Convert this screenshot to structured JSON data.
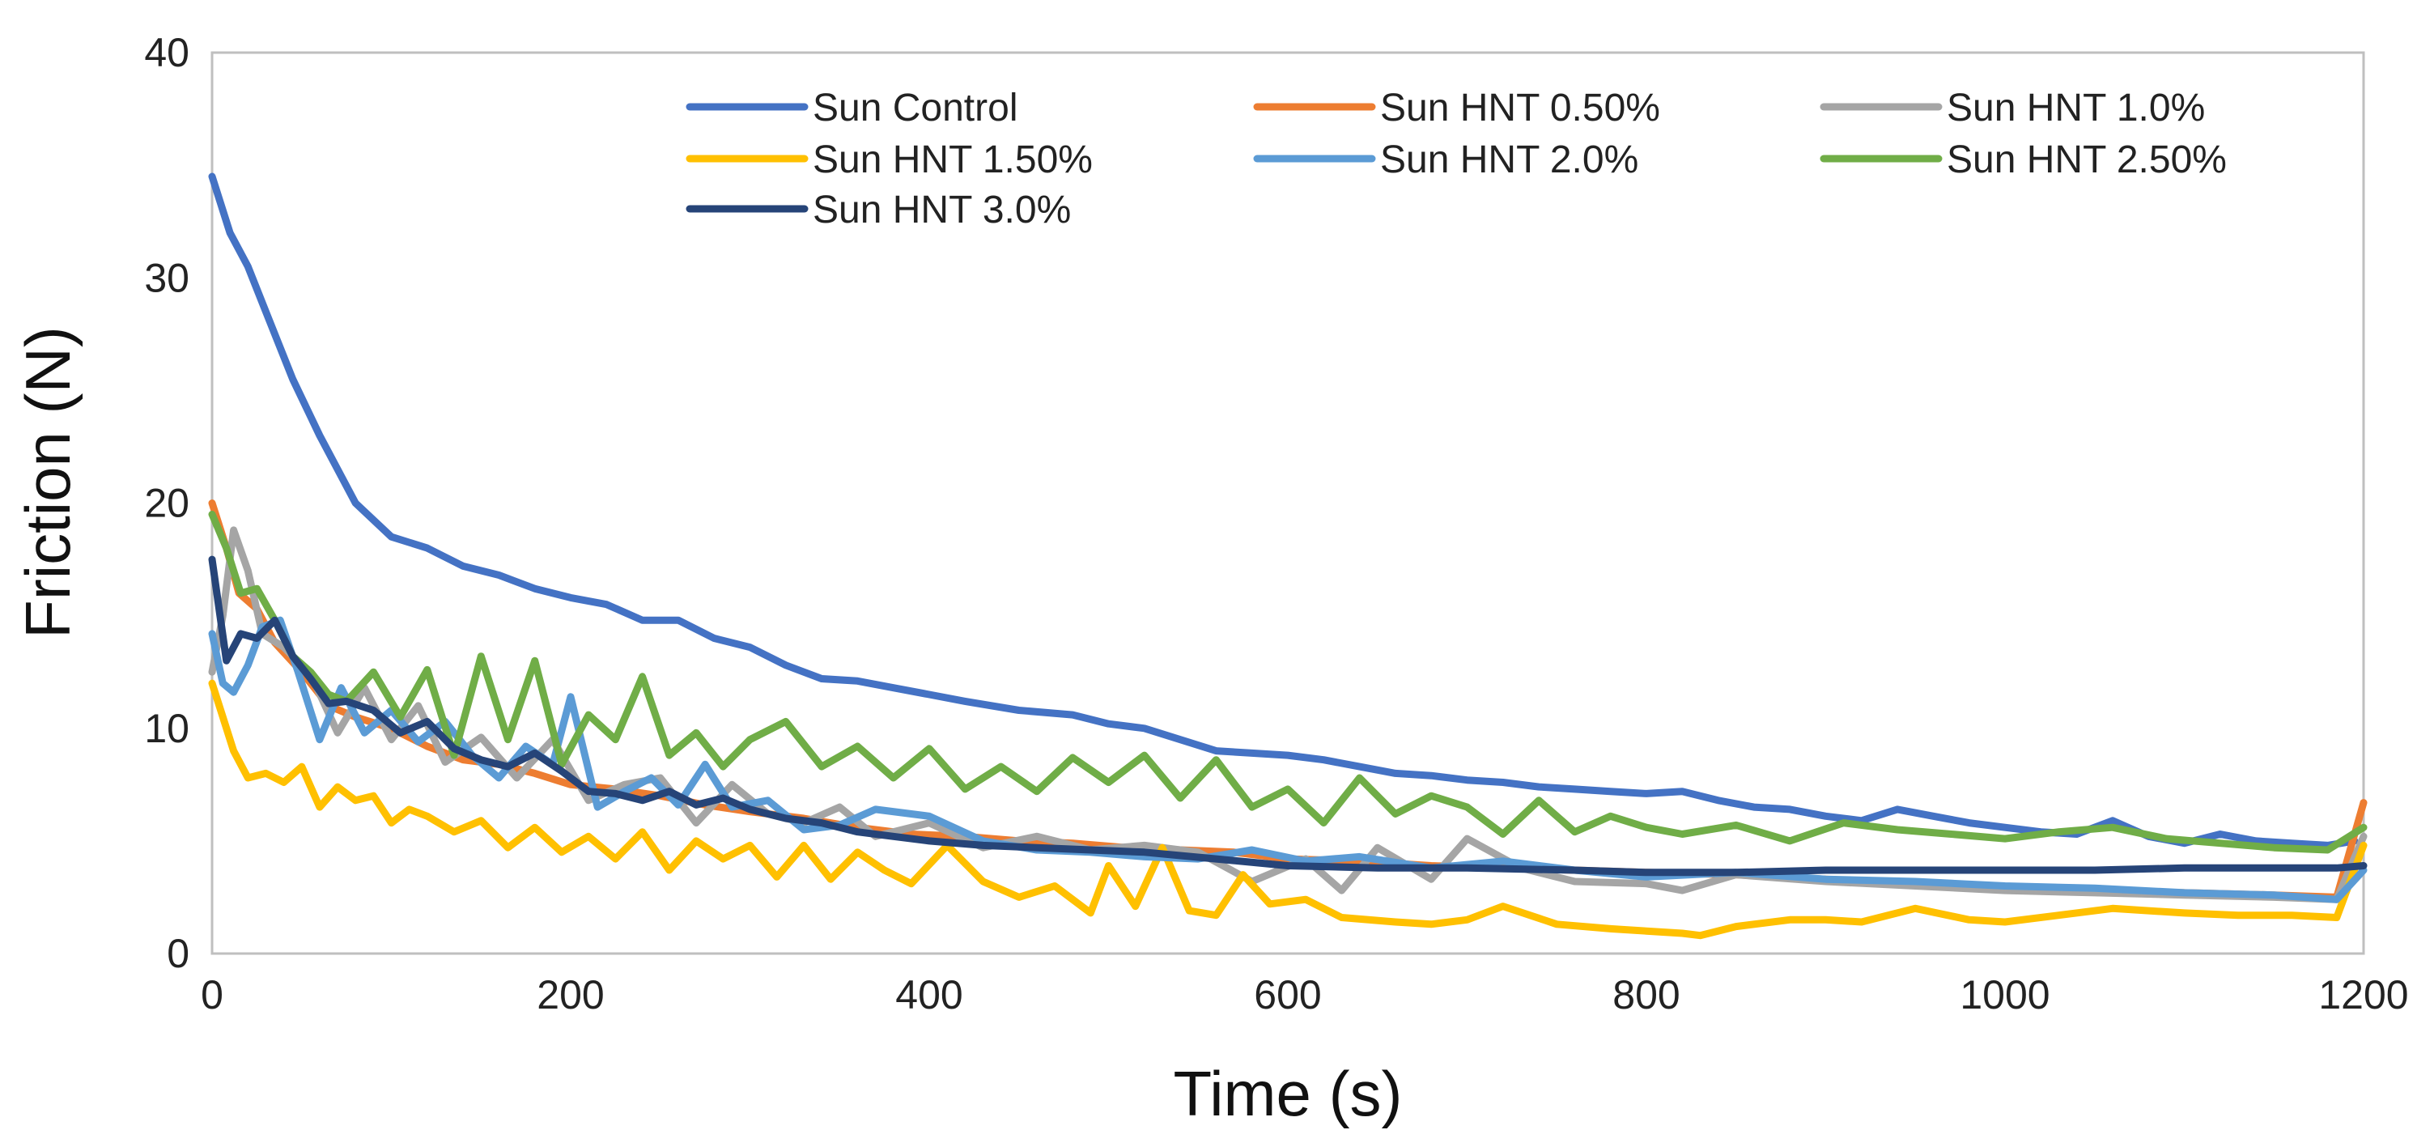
{
  "chart_data": {
    "type": "line",
    "xlabel": "Time (s)",
    "ylabel": "Friction (N)",
    "xlim": [
      0,
      1200
    ],
    "ylim": [
      0,
      40
    ],
    "xticks": [
      0,
      200,
      400,
      600,
      800,
      1000,
      1200
    ],
    "yticks": [
      0,
      10,
      20,
      30,
      40
    ],
    "grid": false,
    "legend_position": "top-right",
    "series": [
      {
        "name": "Sun Control",
        "color": "#4472c4",
        "x": [
          0,
          10,
          20,
          30,
          45,
          60,
          80,
          100,
          120,
          140,
          160,
          180,
          200,
          220,
          240,
          260,
          280,
          300,
          320,
          340,
          360,
          380,
          400,
          420,
          450,
          480,
          500,
          520,
          540,
          560,
          580,
          600,
          620,
          640,
          660,
          680,
          700,
          720,
          740,
          760,
          780,
          800,
          820,
          840,
          860,
          880,
          900,
          920,
          940,
          960,
          980,
          1000,
          1020,
          1040,
          1060,
          1080,
          1100,
          1120,
          1140,
          1160,
          1180,
          1195
        ],
        "y": [
          34.5,
          32,
          30.5,
          28.5,
          25.5,
          23,
          20,
          18.5,
          18,
          17.2,
          16.8,
          16.2,
          15.8,
          15.5,
          14.8,
          14.8,
          14,
          13.6,
          12.8,
          12.2,
          12.1,
          11.8,
          11.5,
          11.2,
          10.8,
          10.6,
          10.2,
          10,
          9.5,
          9,
          8.9,
          8.8,
          8.6,
          8.3,
          8,
          7.9,
          7.7,
          7.6,
          7.4,
          7.3,
          7.2,
          7.1,
          7.2,
          6.8,
          6.5,
          6.4,
          6.1,
          5.9,
          6.4,
          6.1,
          5.8,
          5.6,
          5.4,
          5.3,
          5.9,
          5.2,
          4.9,
          5.3,
          5,
          4.9,
          4.8,
          5
        ]
      },
      {
        "name": "Sun HNT 0.50%",
        "color": "#ed7d31",
        "x": [
          0,
          8,
          15,
          25,
          35,
          50,
          65,
          80,
          100,
          120,
          140,
          160,
          180,
          200,
          225,
          250,
          275,
          300,
          330,
          360,
          390,
          420,
          450,
          480,
          510,
          540,
          570,
          600,
          640,
          680,
          720,
          760,
          800,
          850,
          900,
          950,
          1000,
          1050,
          1100,
          1150,
          1185,
          1200
        ],
        "y": [
          20,
          18,
          16,
          15.3,
          13.8,
          12.5,
          11,
          10.5,
          10,
          9.2,
          8.6,
          8.4,
          8,
          7.5,
          7.3,
          7,
          6.6,
          6.3,
          6,
          5.6,
          5.3,
          5.2,
          5,
          4.9,
          4.7,
          4.6,
          4.5,
          4.2,
          4.1,
          3.9,
          3.8,
          3.7,
          3.6,
          3.5,
          3.3,
          3.1,
          2.9,
          2.8,
          2.7,
          2.6,
          2.5,
          6.7
        ]
      },
      {
        "name": "Sun HNT 1.0%",
        "color": "#a5a5a5",
        "x": [
          0,
          6,
          12,
          20,
          28,
          40,
          55,
          70,
          85,
          100,
          115,
          130,
          150,
          170,
          190,
          210,
          230,
          250,
          270,
          290,
          310,
          330,
          350,
          370,
          400,
          430,
          460,
          490,
          520,
          550,
          580,
          610,
          630,
          650,
          680,
          700,
          730,
          760,
          800,
          820,
          850,
          900,
          950,
          1000,
          1050,
          1100,
          1150,
          1185,
          1200
        ],
        "y": [
          12.5,
          15,
          18.8,
          17,
          14.2,
          13.6,
          12.4,
          9.8,
          11.8,
          9.5,
          11,
          8.5,
          9.6,
          7.8,
          9.5,
          6.8,
          7.5,
          7.8,
          5.8,
          7.5,
          6.2,
          5.8,
          6.5,
          5.2,
          5.8,
          4.7,
          5.2,
          4.6,
          4.8,
          4.5,
          3.2,
          4.2,
          2.8,
          4.7,
          3.3,
          5.1,
          3.8,
          3.2,
          3.1,
          2.8,
          3.5,
          3.2,
          3,
          2.8,
          2.7,
          2.6,
          2.5,
          2.4,
          5.2
        ]
      },
      {
        "name": "Sun HNT 1.50%",
        "color": "#ffc000",
        "x": [
          0,
          6,
          12,
          20,
          30,
          40,
          50,
          60,
          70,
          80,
          90,
          100,
          110,
          120,
          135,
          150,
          165,
          180,
          195,
          210,
          225,
          240,
          255,
          270,
          285,
          300,
          315,
          330,
          345,
          360,
          375,
          390,
          410,
          430,
          450,
          470,
          490,
          500,
          515,
          530,
          545,
          560,
          575,
          590,
          610,
          630,
          660,
          680,
          700,
          720,
          750,
          780,
          800,
          820,
          830,
          850,
          880,
          900,
          920,
          950,
          980,
          1000,
          1030,
          1060,
          1100,
          1130,
          1160,
          1185,
          1200
        ],
        "y": [
          12,
          10.5,
          9,
          7.8,
          8,
          7.6,
          8.3,
          6.5,
          7.4,
          6.8,
          7,
          5.8,
          6.4,
          6.1,
          5.4,
          5.9,
          4.7,
          5.6,
          4.5,
          5.2,
          4.2,
          5.4,
          3.7,
          5,
          4.2,
          4.8,
          3.4,
          4.8,
          3.3,
          4.5,
          3.7,
          3.1,
          4.8,
          3.2,
          2.5,
          3,
          1.8,
          3.9,
          2.1,
          4.7,
          1.9,
          1.7,
          3.5,
          2.2,
          2.4,
          1.6,
          1.4,
          1.3,
          1.5,
          2.1,
          1.3,
          1.1,
          1,
          0.9,
          0.8,
          1.2,
          1.5,
          1.5,
          1.4,
          2,
          1.5,
          1.4,
          1.7,
          2,
          1.8,
          1.7,
          1.7,
          1.6,
          4.8
        ]
      },
      {
        "name": "Sun HNT 2.0%",
        "color": "#5b9bd5",
        "x": [
          0,
          6,
          12,
          20,
          28,
          38,
          48,
          60,
          72,
          85,
          100,
          115,
          130,
          145,
          160,
          175,
          190,
          200,
          215,
          230,
          245,
          260,
          275,
          290,
          310,
          330,
          350,
          370,
          400,
          430,
          460,
          490,
          520,
          550,
          580,
          610,
          640,
          680,
          720,
          760,
          800,
          850,
          900,
          950,
          1000,
          1050,
          1100,
          1150,
          1185,
          1200
        ],
        "y": [
          14.2,
          12,
          11.6,
          12.8,
          14.5,
          14.8,
          12.5,
          9.5,
          11.8,
          9.8,
          10.8,
          9.4,
          10.3,
          8.8,
          7.8,
          9.2,
          8.4,
          11.4,
          6.5,
          7.2,
          7.8,
          6.6,
          8.4,
          6.5,
          6.8,
          5.5,
          5.7,
          6.4,
          6.1,
          5,
          4.6,
          4.5,
          4.3,
          4.2,
          4.6,
          4.1,
          4.3,
          3.8,
          4.1,
          3.7,
          3.4,
          3.6,
          3.3,
          3.2,
          3,
          2.9,
          2.7,
          2.6,
          2.4,
          3.7
        ]
      },
      {
        "name": "Sun HNT 2.50%",
        "color": "#70ad47",
        "x": [
          0,
          8,
          16,
          25,
          35,
          45,
          55,
          65,
          75,
          90,
          105,
          120,
          135,
          150,
          165,
          180,
          195,
          210,
          225,
          240,
          255,
          270,
          285,
          300,
          320,
          340,
          360,
          380,
          400,
          420,
          440,
          460,
          480,
          500,
          520,
          540,
          560,
          580,
          600,
          620,
          640,
          660,
          680,
          700,
          720,
          740,
          760,
          780,
          800,
          820,
          850,
          880,
          910,
          940,
          970,
          1000,
          1030,
          1060,
          1090,
          1120,
          1150,
          1180,
          1200
        ],
        "y": [
          19.5,
          18,
          16,
          16.2,
          14.8,
          13.2,
          12.5,
          11.5,
          11.2,
          12.5,
          10.5,
          12.6,
          8.8,
          13.2,
          9.5,
          13,
          8.4,
          10.6,
          9.5,
          12.3,
          8.8,
          9.8,
          8.3,
          9.5,
          10.3,
          8.3,
          9.2,
          7.8,
          9.1,
          7.3,
          8.3,
          7.2,
          8.7,
          7.6,
          8.8,
          6.9,
          8.6,
          6.5,
          7.3,
          5.8,
          7.8,
          6.2,
          7,
          6.5,
          5.3,
          6.8,
          5.4,
          6.1,
          5.6,
          5.3,
          5.7,
          5,
          5.8,
          5.5,
          5.3,
          5.1,
          5.4,
          5.6,
          5.1,
          4.9,
          4.7,
          4.6,
          5.6
        ]
      },
      {
        "name": "Sun HNT 3.0%",
        "color": "#264478",
        "x": [
          0,
          8,
          16,
          25,
          35,
          45,
          55,
          65,
          75,
          90,
          105,
          120,
          135,
          150,
          165,
          180,
          195,
          210,
          225,
          240,
          255,
          270,
          285,
          300,
          320,
          340,
          360,
          380,
          400,
          430,
          460,
          490,
          520,
          560,
          600,
          650,
          700,
          760,
          800,
          850,
          900,
          950,
          1000,
          1050,
          1100,
          1150,
          1185,
          1200
        ],
        "y": [
          17.5,
          13,
          14.2,
          14,
          14.8,
          13.2,
          12.2,
          11.1,
          11.2,
          10.8,
          9.8,
          10.3,
          9.1,
          8.6,
          8.3,
          8.9,
          8.1,
          7.2,
          7.1,
          6.8,
          7.2,
          6.6,
          6.9,
          6.4,
          6,
          5.8,
          5.4,
          5.2,
          5,
          4.8,
          4.7,
          4.6,
          4.5,
          4.2,
          3.9,
          3.8,
          3.8,
          3.7,
          3.6,
          3.6,
          3.7,
          3.7,
          3.7,
          3.7,
          3.8,
          3.8,
          3.8,
          3.9
        ]
      }
    ]
  }
}
